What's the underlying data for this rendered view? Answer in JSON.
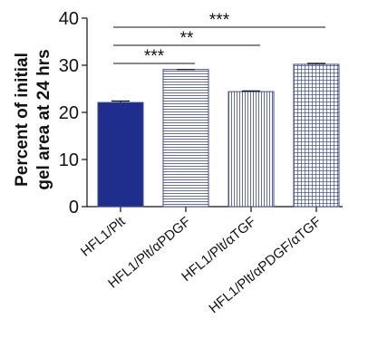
{
  "chart_data": {
    "type": "bar",
    "ylabel_lines": [
      "Percent of initial",
      "gel area at 24 hrs"
    ],
    "ylim": [
      0,
      40
    ],
    "yticks": [
      "0",
      "10",
      "20",
      "30",
      "40"
    ],
    "categories": [
      "HFL1/Plt",
      "HFL1/Plt/αPDGF",
      "HFL1/Plt/αTGF",
      "HFL1/Plt/αPDGF/αTGF"
    ],
    "values": [
      22.1,
      29.1,
      24.4,
      30.2
    ],
    "errors": [
      0.3,
      0.0,
      0.15,
      0.2
    ],
    "fills": [
      "solid",
      "horizontal-lines",
      "vertical-lines",
      "grid"
    ],
    "bar_color": "#1f2d8c",
    "pattern_color": "#3a4a9c",
    "significance": [
      {
        "from": 0,
        "to": 1,
        "label": "***"
      },
      {
        "from": 0,
        "to": 2,
        "label": "**"
      },
      {
        "from": 0,
        "to": 3,
        "label": "***"
      }
    ]
  }
}
